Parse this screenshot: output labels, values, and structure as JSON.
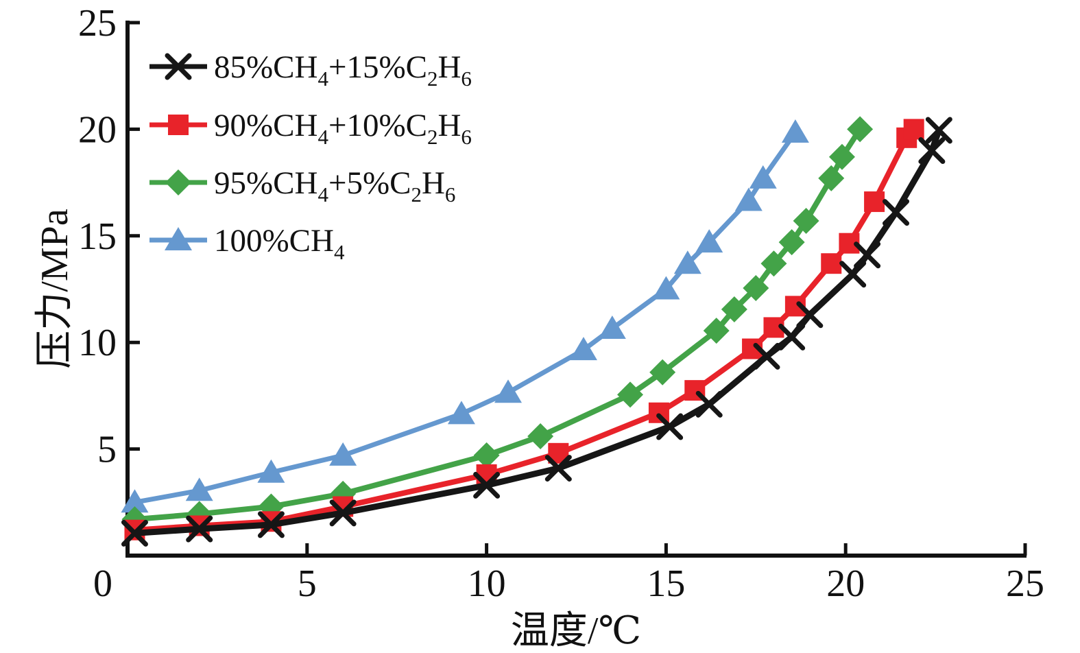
{
  "figure": {
    "background": "#ffffff",
    "axis_color": "#111111"
  },
  "chart_data": {
    "type": "line",
    "title": "",
    "xlabel": "温度/℃",
    "ylabel": "压力/MPa",
    "xlim": [
      0,
      25
    ],
    "ylim": [
      0,
      25
    ],
    "xticks": [
      5,
      10,
      15,
      20,
      25
    ],
    "yticks": [
      5,
      10,
      15,
      20,
      25
    ],
    "origin_label": "0",
    "grid": false,
    "legend_position": "top-left",
    "series": [
      {
        "name": "85%CH4+15%C2H6",
        "label_parts": [
          {
            "t": "85%CH"
          },
          {
            "t": "4",
            "sub": true
          },
          {
            "t": "+15%C"
          },
          {
            "t": "2",
            "sub": true
          },
          {
            "t": "H"
          },
          {
            "t": "6",
            "sub": true
          }
        ],
        "color": "#161616",
        "marker": "x-cross",
        "line_width": 9,
        "points": [
          [
            0.2,
            1.05
          ],
          [
            2.0,
            1.25
          ],
          [
            4.0,
            1.45
          ],
          [
            6.0,
            2.0
          ],
          [
            10.0,
            3.3
          ],
          [
            12.0,
            4.1
          ],
          [
            15.1,
            6.05
          ],
          [
            16.2,
            7.1
          ],
          [
            17.8,
            9.35
          ],
          [
            18.5,
            10.25
          ],
          [
            19.0,
            11.3
          ],
          [
            20.2,
            13.2
          ],
          [
            20.6,
            14.1
          ],
          [
            21.4,
            16.1
          ],
          [
            22.4,
            19.0
          ],
          [
            22.6,
            19.95
          ]
        ]
      },
      {
        "name": "90%CH4+10%C2H6",
        "label_parts": [
          {
            "t": "90%CH"
          },
          {
            "t": "4",
            "sub": true
          },
          {
            "t": "+10%C"
          },
          {
            "t": "2",
            "sub": true
          },
          {
            "t": "H"
          },
          {
            "t": "6",
            "sub": true
          }
        ],
        "color": "#E8232A",
        "marker": "square",
        "line_width": 8,
        "points": [
          [
            0.2,
            1.2
          ],
          [
            2.0,
            1.4
          ],
          [
            4.0,
            1.6
          ],
          [
            6.0,
            2.3
          ],
          [
            10.0,
            3.8
          ],
          [
            12.0,
            4.8
          ],
          [
            14.8,
            6.7
          ],
          [
            15.8,
            7.75
          ],
          [
            17.4,
            9.7
          ],
          [
            18.0,
            10.7
          ],
          [
            18.6,
            11.7
          ],
          [
            19.6,
            13.7
          ],
          [
            20.1,
            14.65
          ],
          [
            20.8,
            16.6
          ],
          [
            21.7,
            19.6
          ],
          [
            21.9,
            20.0
          ]
        ]
      },
      {
        "name": "95%CH4+5%C2H6",
        "label_parts": [
          {
            "t": "95%CH"
          },
          {
            "t": "4",
            "sub": true
          },
          {
            "t": "+5%C"
          },
          {
            "t": "2",
            "sub": true
          },
          {
            "t": "H"
          },
          {
            "t": "6",
            "sub": true
          }
        ],
        "color": "#43A348",
        "marker": "diamond",
        "line_width": 8,
        "points": [
          [
            0.2,
            1.7
          ],
          [
            2.0,
            1.95
          ],
          [
            4.0,
            2.3
          ],
          [
            6.0,
            2.9
          ],
          [
            10.0,
            4.7
          ],
          [
            11.5,
            5.6
          ],
          [
            14.0,
            7.55
          ],
          [
            14.9,
            8.6
          ],
          [
            16.4,
            10.55
          ],
          [
            16.9,
            11.55
          ],
          [
            17.5,
            12.55
          ],
          [
            18.0,
            13.7
          ],
          [
            18.5,
            14.7
          ],
          [
            18.9,
            15.7
          ],
          [
            19.6,
            17.7
          ],
          [
            19.9,
            18.7
          ],
          [
            20.4,
            20.0
          ]
        ]
      },
      {
        "name": "100%CH4",
        "label_parts": [
          {
            "t": "100%CH"
          },
          {
            "t": "4",
            "sub": true
          }
        ],
        "color": "#6598CF",
        "marker": "triangle-up",
        "line_width": 7,
        "points": [
          [
            0.2,
            2.5
          ],
          [
            2.0,
            3.05
          ],
          [
            4.0,
            3.9
          ],
          [
            6.0,
            4.7
          ],
          [
            9.3,
            6.65
          ],
          [
            10.6,
            7.65
          ],
          [
            12.7,
            9.65
          ],
          [
            13.5,
            10.65
          ],
          [
            15.0,
            12.5
          ],
          [
            15.6,
            13.7
          ],
          [
            16.2,
            14.7
          ],
          [
            17.3,
            16.65
          ],
          [
            17.7,
            17.7
          ],
          [
            18.6,
            19.85
          ]
        ]
      }
    ]
  }
}
